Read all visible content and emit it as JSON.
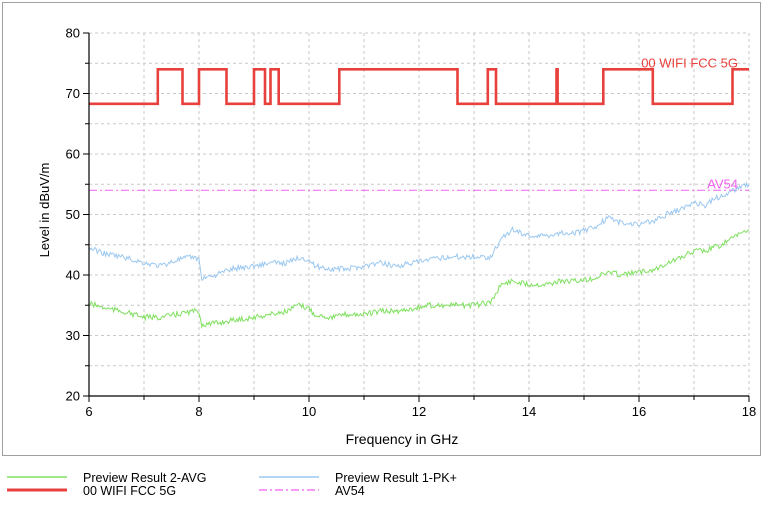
{
  "chart_data": {
    "type": "line",
    "xlabel": "Frequency in GHz",
    "ylabel": "Level in dBuV/m",
    "xlim": [
      6,
      18
    ],
    "ylim": [
      20,
      80
    ],
    "x_ticks": [
      6,
      8,
      10,
      12,
      14,
      16,
      18
    ],
    "y_ticks": [
      20,
      30,
      40,
      50,
      60,
      70,
      80
    ],
    "x_tick_labels": [
      "6",
      "8",
      "10",
      "12",
      "14",
      "16",
      "18"
    ],
    "y_tick_labels": [
      "20",
      "30",
      "40",
      "50",
      "60",
      "70",
      "80"
    ],
    "grid": true,
    "legend_position": "bottom",
    "series": [
      {
        "name": "00 WIFI FCC 5G",
        "color": "#e8403c",
        "style": "solid",
        "step_points": [
          [
            6.0,
            68.3
          ],
          [
            7.25,
            68.3
          ],
          [
            7.25,
            74.0
          ],
          [
            7.7,
            74.0
          ],
          [
            7.7,
            68.3
          ],
          [
            8.0,
            68.3
          ],
          [
            8.0,
            74.0
          ],
          [
            8.5,
            74.0
          ],
          [
            8.5,
            68.3
          ],
          [
            9.0,
            68.3
          ],
          [
            9.0,
            74.0
          ],
          [
            9.2,
            74.0
          ],
          [
            9.2,
            68.3
          ],
          [
            9.3,
            68.3
          ],
          [
            9.3,
            74.0
          ],
          [
            9.45,
            74.0
          ],
          [
            9.45,
            68.3
          ],
          [
            10.55,
            68.3
          ],
          [
            10.55,
            74.0
          ],
          [
            12.7,
            74.0
          ],
          [
            12.7,
            68.3
          ],
          [
            13.25,
            68.3
          ],
          [
            13.25,
            74.0
          ],
          [
            13.4,
            74.0
          ],
          [
            13.4,
            68.3
          ],
          [
            14.5,
            68.3
          ],
          [
            14.5,
            74.0
          ],
          [
            14.52,
            74.0
          ],
          [
            14.52,
            68.3
          ],
          [
            15.35,
            68.3
          ],
          [
            15.35,
            74.0
          ],
          [
            16.25,
            74.0
          ],
          [
            16.25,
            68.3
          ],
          [
            17.7,
            68.3
          ],
          [
            17.7,
            74.0
          ],
          [
            18.0,
            74.0
          ]
        ]
      },
      {
        "name": "AV54",
        "color": "#f060f0",
        "style": "dashdot",
        "points": [
          [
            6.0,
            54.0
          ],
          [
            18.0,
            54.0
          ]
        ]
      },
      {
        "name": "Preview Result 1-PK+",
        "color": "#9cc8f0",
        "style": "solid",
        "points": [
          [
            6.0,
            44.5
          ],
          [
            6.3,
            43.5
          ],
          [
            6.6,
            43.0
          ],
          [
            7.0,
            42.0
          ],
          [
            7.3,
            41.5
          ],
          [
            7.6,
            42.5
          ],
          [
            7.9,
            43.0
          ],
          [
            8.0,
            42.5
          ],
          [
            8.05,
            39.5
          ],
          [
            8.3,
            40.0
          ],
          [
            8.6,
            41.0
          ],
          [
            9.0,
            41.5
          ],
          [
            9.3,
            42.0
          ],
          [
            9.6,
            42.0
          ],
          [
            9.85,
            43.0
          ],
          [
            10.0,
            42.5
          ],
          [
            10.1,
            41.5
          ],
          [
            10.4,
            41.0
          ],
          [
            10.7,
            41.0
          ],
          [
            11.0,
            41.5
          ],
          [
            11.3,
            42.0
          ],
          [
            11.6,
            41.5
          ],
          [
            11.9,
            42.0
          ],
          [
            12.2,
            42.5
          ],
          [
            12.5,
            43.0
          ],
          [
            12.8,
            43.0
          ],
          [
            13.0,
            43.0
          ],
          [
            13.3,
            43.0
          ],
          [
            13.5,
            46.0
          ],
          [
            13.7,
            47.5
          ],
          [
            14.0,
            46.5
          ],
          [
            14.3,
            46.5
          ],
          [
            14.6,
            47.0
          ],
          [
            14.9,
            47.0
          ],
          [
            15.2,
            48.0
          ],
          [
            15.45,
            49.5
          ],
          [
            15.7,
            48.5
          ],
          [
            16.0,
            48.5
          ],
          [
            16.3,
            49.0
          ],
          [
            16.5,
            50.0
          ],
          [
            16.8,
            51.0
          ],
          [
            17.0,
            52.0
          ],
          [
            17.2,
            51.5
          ],
          [
            17.35,
            52.5
          ],
          [
            17.5,
            53.0
          ],
          [
            17.7,
            54.0
          ],
          [
            17.85,
            54.5
          ],
          [
            18.0,
            55.0
          ]
        ]
      },
      {
        "name": "Preview Result 2-AVG",
        "color": "#80e060",
        "style": "solid",
        "points": [
          [
            6.0,
            35.3
          ],
          [
            6.3,
            34.5
          ],
          [
            6.6,
            34.0
          ],
          [
            7.0,
            33.0
          ],
          [
            7.3,
            33.0
          ],
          [
            7.6,
            33.5
          ],
          [
            7.9,
            34.0
          ],
          [
            8.0,
            34.0
          ],
          [
            8.05,
            31.8
          ],
          [
            8.3,
            32.0
          ],
          [
            8.6,
            32.5
          ],
          [
            9.0,
            33.0
          ],
          [
            9.3,
            33.5
          ],
          [
            9.6,
            34.0
          ],
          [
            9.8,
            35.0
          ],
          [
            10.0,
            34.5
          ],
          [
            10.1,
            33.5
          ],
          [
            10.4,
            33.0
          ],
          [
            10.7,
            33.5
          ],
          [
            11.0,
            33.5
          ],
          [
            11.3,
            34.0
          ],
          [
            11.6,
            34.0
          ],
          [
            11.9,
            34.5
          ],
          [
            12.2,
            35.0
          ],
          [
            12.5,
            35.0
          ],
          [
            12.8,
            35.0
          ],
          [
            13.0,
            35.0
          ],
          [
            13.3,
            35.5
          ],
          [
            13.5,
            38.5
          ],
          [
            13.7,
            39.0
          ],
          [
            14.0,
            38.5
          ],
          [
            14.3,
            38.5
          ],
          [
            14.6,
            39.0
          ],
          [
            14.9,
            39.0
          ],
          [
            15.2,
            39.5
          ],
          [
            15.45,
            40.5
          ],
          [
            15.7,
            40.0
          ],
          [
            16.0,
            40.5
          ],
          [
            16.3,
            41.0
          ],
          [
            16.5,
            42.0
          ],
          [
            16.8,
            43.0
          ],
          [
            17.0,
            44.0
          ],
          [
            17.2,
            44.0
          ],
          [
            17.35,
            44.5
          ],
          [
            17.5,
            45.0
          ],
          [
            17.7,
            46.0
          ],
          [
            17.85,
            47.0
          ],
          [
            18.0,
            47.5
          ]
        ]
      }
    ],
    "annotations": [
      {
        "text": "00 WIFI FCC 5G",
        "x": 17.8,
        "y": 75.0,
        "color": "#e8403c"
      },
      {
        "text": "AV54",
        "x": 17.8,
        "y": 55.0,
        "color": "#f060f0"
      }
    ]
  },
  "legend": {
    "items": [
      {
        "label": "Preview Result 2-AVG",
        "color": "#80e060",
        "style": "solid"
      },
      {
        "label": "Preview Result 1-PK+",
        "color": "#9cc8f0",
        "style": "solid"
      },
      {
        "label": "00 WIFI FCC 5G",
        "color": "#e8403c",
        "style": "solid-thick"
      },
      {
        "label": "AV54",
        "color": "#f060f0",
        "style": "dashdot"
      }
    ]
  }
}
